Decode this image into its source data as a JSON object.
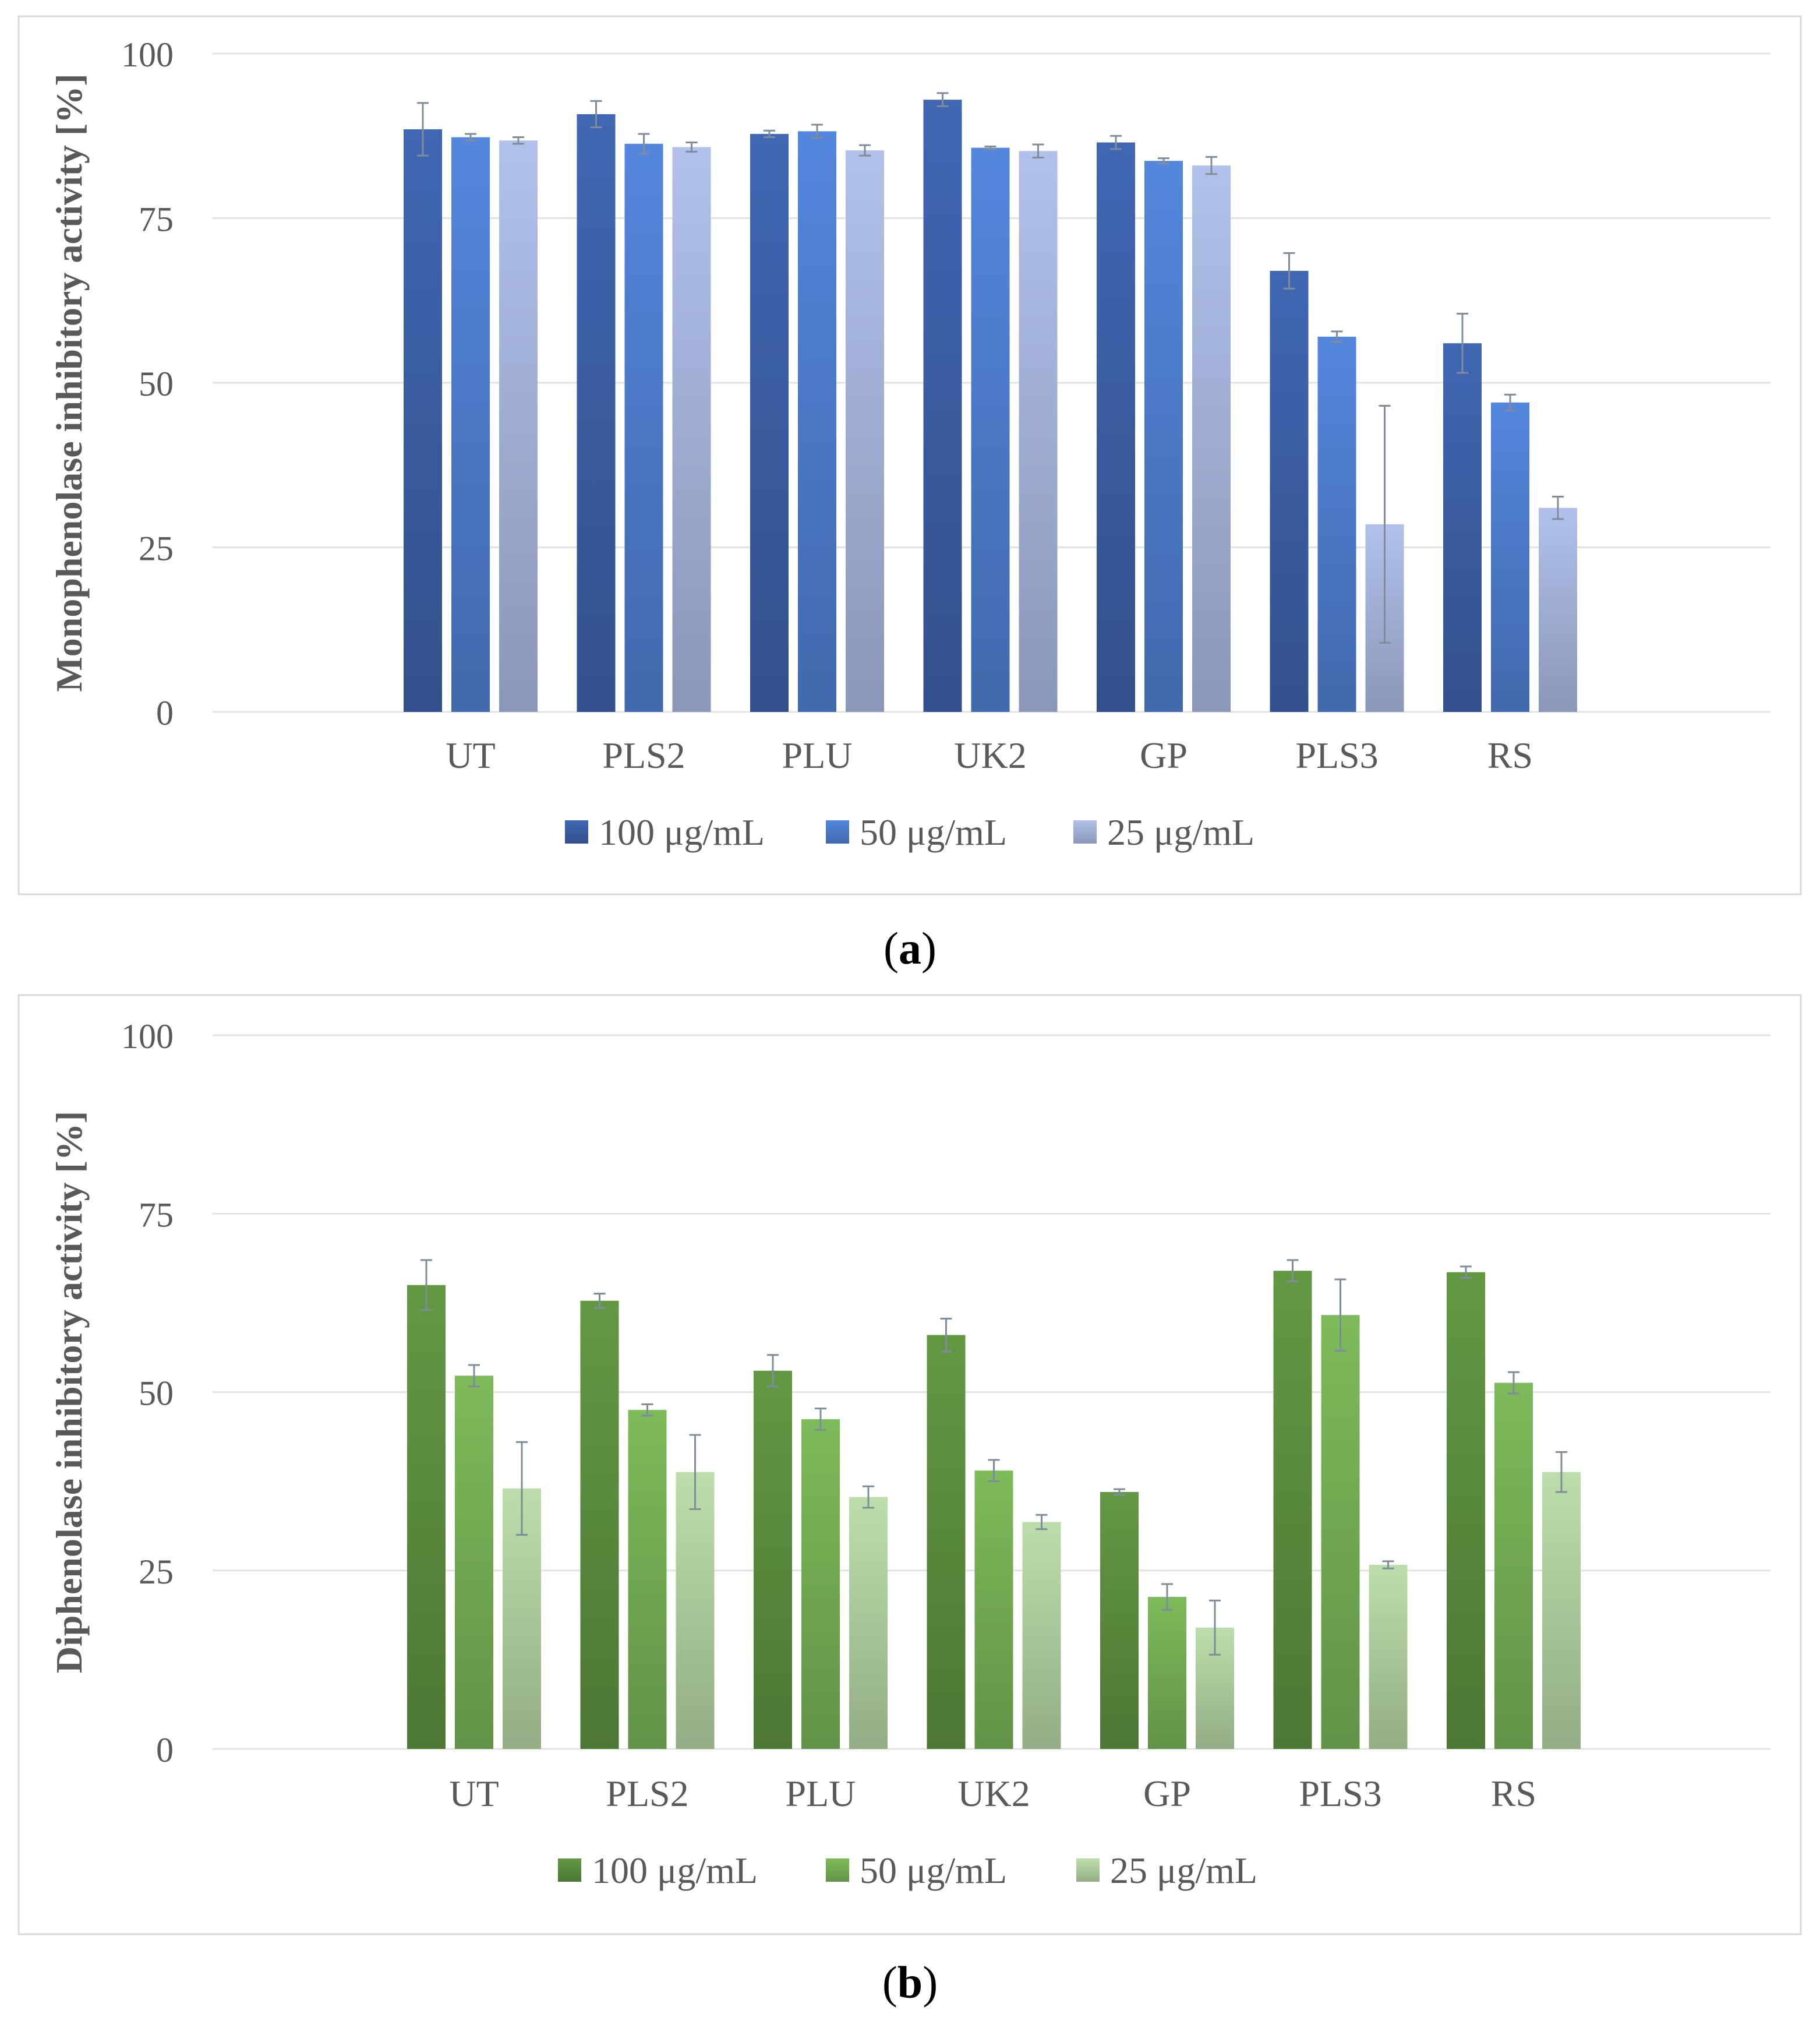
{
  "captions": {
    "a_letter": "a",
    "b_letter": "b"
  },
  "chart_data": [
    {
      "type": "bar",
      "id": "a",
      "title": "",
      "xlabel": "",
      "ylabel": "Monophenolase inhibitory activity [%]",
      "ylim": [
        0,
        100
      ],
      "yticks": [
        "0",
        "25",
        "50",
        "75",
        "100"
      ],
      "grid": true,
      "legend_position": "bottom",
      "categories": [
        "UT",
        "PLS2",
        "PLU",
        "UK2",
        "GP",
        "PLS3",
        "RS"
      ],
      "series": [
        {
          "name": "100 μg/mL",
          "color": "#3d62aa",
          "values": [
            88.5,
            90.8,
            87.8,
            93.0,
            86.5,
            67.0,
            56.0
          ],
          "errors": [
            4.0,
            2.0,
            0.5,
            1.0,
            1.0,
            2.7,
            4.5
          ]
        },
        {
          "name": "50 μg/mL",
          "color": "#4f80d2",
          "values": [
            87.3,
            86.3,
            88.2,
            85.7,
            83.7,
            57.0,
            47.0
          ],
          "errors": [
            0.5,
            1.5,
            1.0,
            0.2,
            0.4,
            0.8,
            1.2
          ]
        },
        {
          "name": "25 μg/mL",
          "color": "#a9b8e0",
          "values": [
            86.8,
            85.8,
            85.3,
            85.2,
            83.0,
            28.5,
            31.0
          ],
          "errors": [
            0.5,
            0.7,
            0.8,
            1.0,
            1.3,
            18.0,
            1.7
          ]
        }
      ]
    },
    {
      "type": "bar",
      "id": "b",
      "title": "",
      "xlabel": "",
      "ylabel": "Diphenolase inhibitory activity [%]",
      "ylim": [
        0,
        100
      ],
      "yticks": [
        "0",
        "25",
        "50",
        "75",
        "100"
      ],
      "grid": true,
      "legend_position": "bottom",
      "categories": [
        "UT",
        "PLS2",
        "PLU",
        "UK2",
        "GP",
        "PLS3",
        "RS"
      ],
      "series": [
        {
          "name": "100 μg/mL",
          "color": "#5e9140",
          "values": [
            65.0,
            62.8,
            53.0,
            58.0,
            36.0,
            67.0,
            66.8
          ],
          "errors": [
            3.5,
            1.0,
            2.2,
            2.3,
            0.4,
            1.5,
            0.8
          ]
        },
        {
          "name": "50 μg/mL",
          "color": "#77b256",
          "values": [
            52.3,
            47.5,
            46.2,
            39.0,
            21.3,
            60.8,
            51.3
          ],
          "errors": [
            1.5,
            0.8,
            1.5,
            1.5,
            1.8,
            5.0,
            1.5
          ]
        },
        {
          "name": "25 μg/mL",
          "color": "#b3d3a3",
          "values": [
            36.5,
            38.8,
            35.3,
            31.8,
            17.0,
            25.8,
            38.8
          ],
          "errors": [
            6.5,
            5.2,
            1.5,
            1.0,
            3.8,
            0.5,
            2.8
          ]
        }
      ]
    }
  ]
}
